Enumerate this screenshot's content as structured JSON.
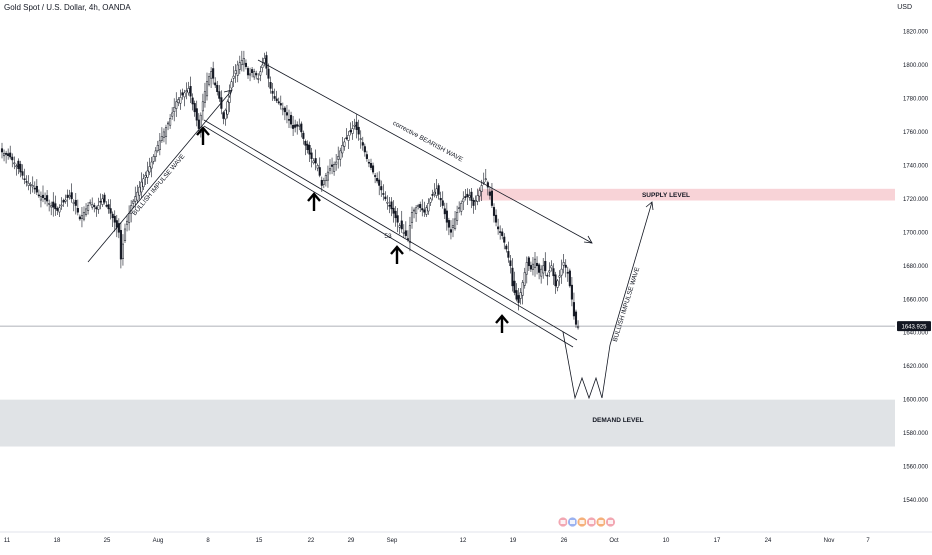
{
  "header": {
    "symbol_title": "Gold Spot / U.S. Dollar, 4h, OANDA",
    "currency": "USD"
  },
  "colors": {
    "supply_zone": "#f8d3d7",
    "demand_zone": "#e0e3e6",
    "candle": "#131722",
    "axis_text": "#131722"
  },
  "chart_data": {
    "type": "candlestick",
    "title": "Gold Spot / U.S. Dollar, 4h, OANDA",
    "y_unit": "USD",
    "ylim": [
      1527,
      1838
    ],
    "y_ticks": [
      "1820.000",
      "1800.000",
      "1780.000",
      "1760.000",
      "1740.000",
      "1720.000",
      "1700.000",
      "1680.000",
      "1660.000",
      "1640.000",
      "1620.000",
      "1600.000",
      "1580.000",
      "1560.000",
      "1540.000"
    ],
    "x_ticks": [
      "11",
      "18",
      "25",
      "Aug",
      "8",
      "15",
      "22",
      "29",
      "Sep",
      "12",
      "19",
      "26",
      "Oct",
      "10",
      "17",
      "24",
      "Nov",
      "7"
    ],
    "current_price": "1643.925",
    "price_path": [
      [
        0,
        1748
      ],
      [
        4,
        1745
      ],
      [
        8,
        1738
      ],
      [
        12,
        1730
      ],
      [
        15,
        1728
      ],
      [
        18,
        1722
      ],
      [
        21,
        1720
      ],
      [
        24,
        1716
      ],
      [
        27,
        1713
      ],
      [
        30,
        1718
      ],
      [
        33,
        1722
      ],
      [
        36,
        1716
      ],
      [
        38,
        1708
      ],
      [
        40,
        1712
      ],
      [
        43,
        1718
      ],
      [
        46,
        1714
      ],
      [
        49,
        1720
      ],
      [
        52,
        1714
      ],
      [
        55,
        1706
      ],
      [
        57,
        1700
      ],
      [
        58,
        1684
      ],
      [
        60,
        1702
      ],
      [
        63,
        1716
      ],
      [
        66,
        1724
      ],
      [
        68,
        1730
      ],
      [
        70,
        1734
      ],
      [
        73,
        1742
      ],
      [
        76,
        1752
      ],
      [
        79,
        1760
      ],
      [
        82,
        1768
      ],
      [
        85,
        1778
      ],
      [
        88,
        1782
      ],
      [
        91,
        1786
      ],
      [
        94,
        1772
      ],
      [
        96,
        1762
      ],
      [
        98,
        1778
      ],
      [
        100,
        1790
      ],
      [
        102,
        1796
      ],
      [
        104,
        1788
      ],
      [
        106,
        1780
      ],
      [
        108,
        1768
      ],
      [
        110,
        1778
      ],
      [
        112,
        1790
      ],
      [
        115,
        1800
      ],
      [
        118,
        1804
      ],
      [
        120,
        1794
      ],
      [
        123,
        1796
      ],
      [
        125,
        1792
      ],
      [
        128,
        1804
      ],
      [
        129,
        1798
      ],
      [
        131,
        1786
      ],
      [
        133,
        1780
      ],
      [
        136,
        1776
      ],
      [
        139,
        1770
      ],
      [
        142,
        1762
      ],
      [
        145,
        1764
      ],
      [
        148,
        1752
      ],
      [
        151,
        1744
      ],
      [
        154,
        1740
      ],
      [
        156,
        1728
      ],
      [
        158,
        1734
      ],
      [
        160,
        1738
      ],
      [
        163,
        1742
      ],
      [
        166,
        1752
      ],
      [
        169,
        1758
      ],
      [
        172,
        1764
      ],
      [
        175,
        1756
      ],
      [
        178,
        1744
      ],
      [
        181,
        1736
      ],
      [
        184,
        1728
      ],
      [
        187,
        1720
      ],
      [
        190,
        1714
      ],
      [
        193,
        1706
      ],
      [
        196,
        1700
      ],
      [
        198,
        1696
      ],
      [
        200,
        1712
      ],
      [
        203,
        1716
      ],
      [
        206,
        1712
      ],
      [
        209,
        1720
      ],
      [
        212,
        1726
      ],
      [
        215,
        1716
      ],
      [
        217,
        1706
      ],
      [
        219,
        1700
      ],
      [
        222,
        1712
      ],
      [
        225,
        1720
      ],
      [
        228,
        1722
      ],
      [
        230,
        1716
      ],
      [
        232,
        1722
      ],
      [
        234,
        1728
      ],
      [
        236,
        1732
      ],
      [
        238,
        1722
      ],
      [
        240,
        1710
      ],
      [
        242,
        1702
      ],
      [
        244,
        1698
      ],
      [
        246,
        1690
      ],
      [
        248,
        1680
      ],
      [
        249,
        1668
      ],
      [
        251,
        1660
      ],
      [
        252,
        1658
      ],
      [
        254,
        1670
      ],
      [
        256,
        1682
      ],
      [
        258,
        1678
      ],
      [
        260,
        1684
      ],
      [
        262,
        1676
      ],
      [
        264,
        1680
      ],
      [
        266,
        1674
      ],
      [
        268,
        1680
      ],
      [
        270,
        1668
      ],
      [
        272,
        1674
      ],
      [
        274,
        1682
      ],
      [
        276,
        1676
      ],
      [
        277,
        1668
      ],
      [
        278,
        1660
      ],
      [
        279,
        1650
      ],
      [
        280,
        1645
      ],
      [
        281,
        1643.9
      ]
    ]
  },
  "zones": {
    "supply_label": "SUPPLY LEVEL",
    "supply_range": [
      1719,
      1726
    ],
    "demand_label": "DEMAND LEVEL",
    "demand_range": [
      1572,
      1600
    ]
  },
  "annotations": {
    "bullish_wave_left": "BULLISH IMPULSE WAVE",
    "corrective_wave": "corrective BEARISH WAVE",
    "bullish_wave_right": "BULLISH IMPULSE WAVE",
    "small_label": "53"
  },
  "icons": {
    "support_arrow": "arrow-up-icon",
    "event_flags": "flag-icon"
  }
}
